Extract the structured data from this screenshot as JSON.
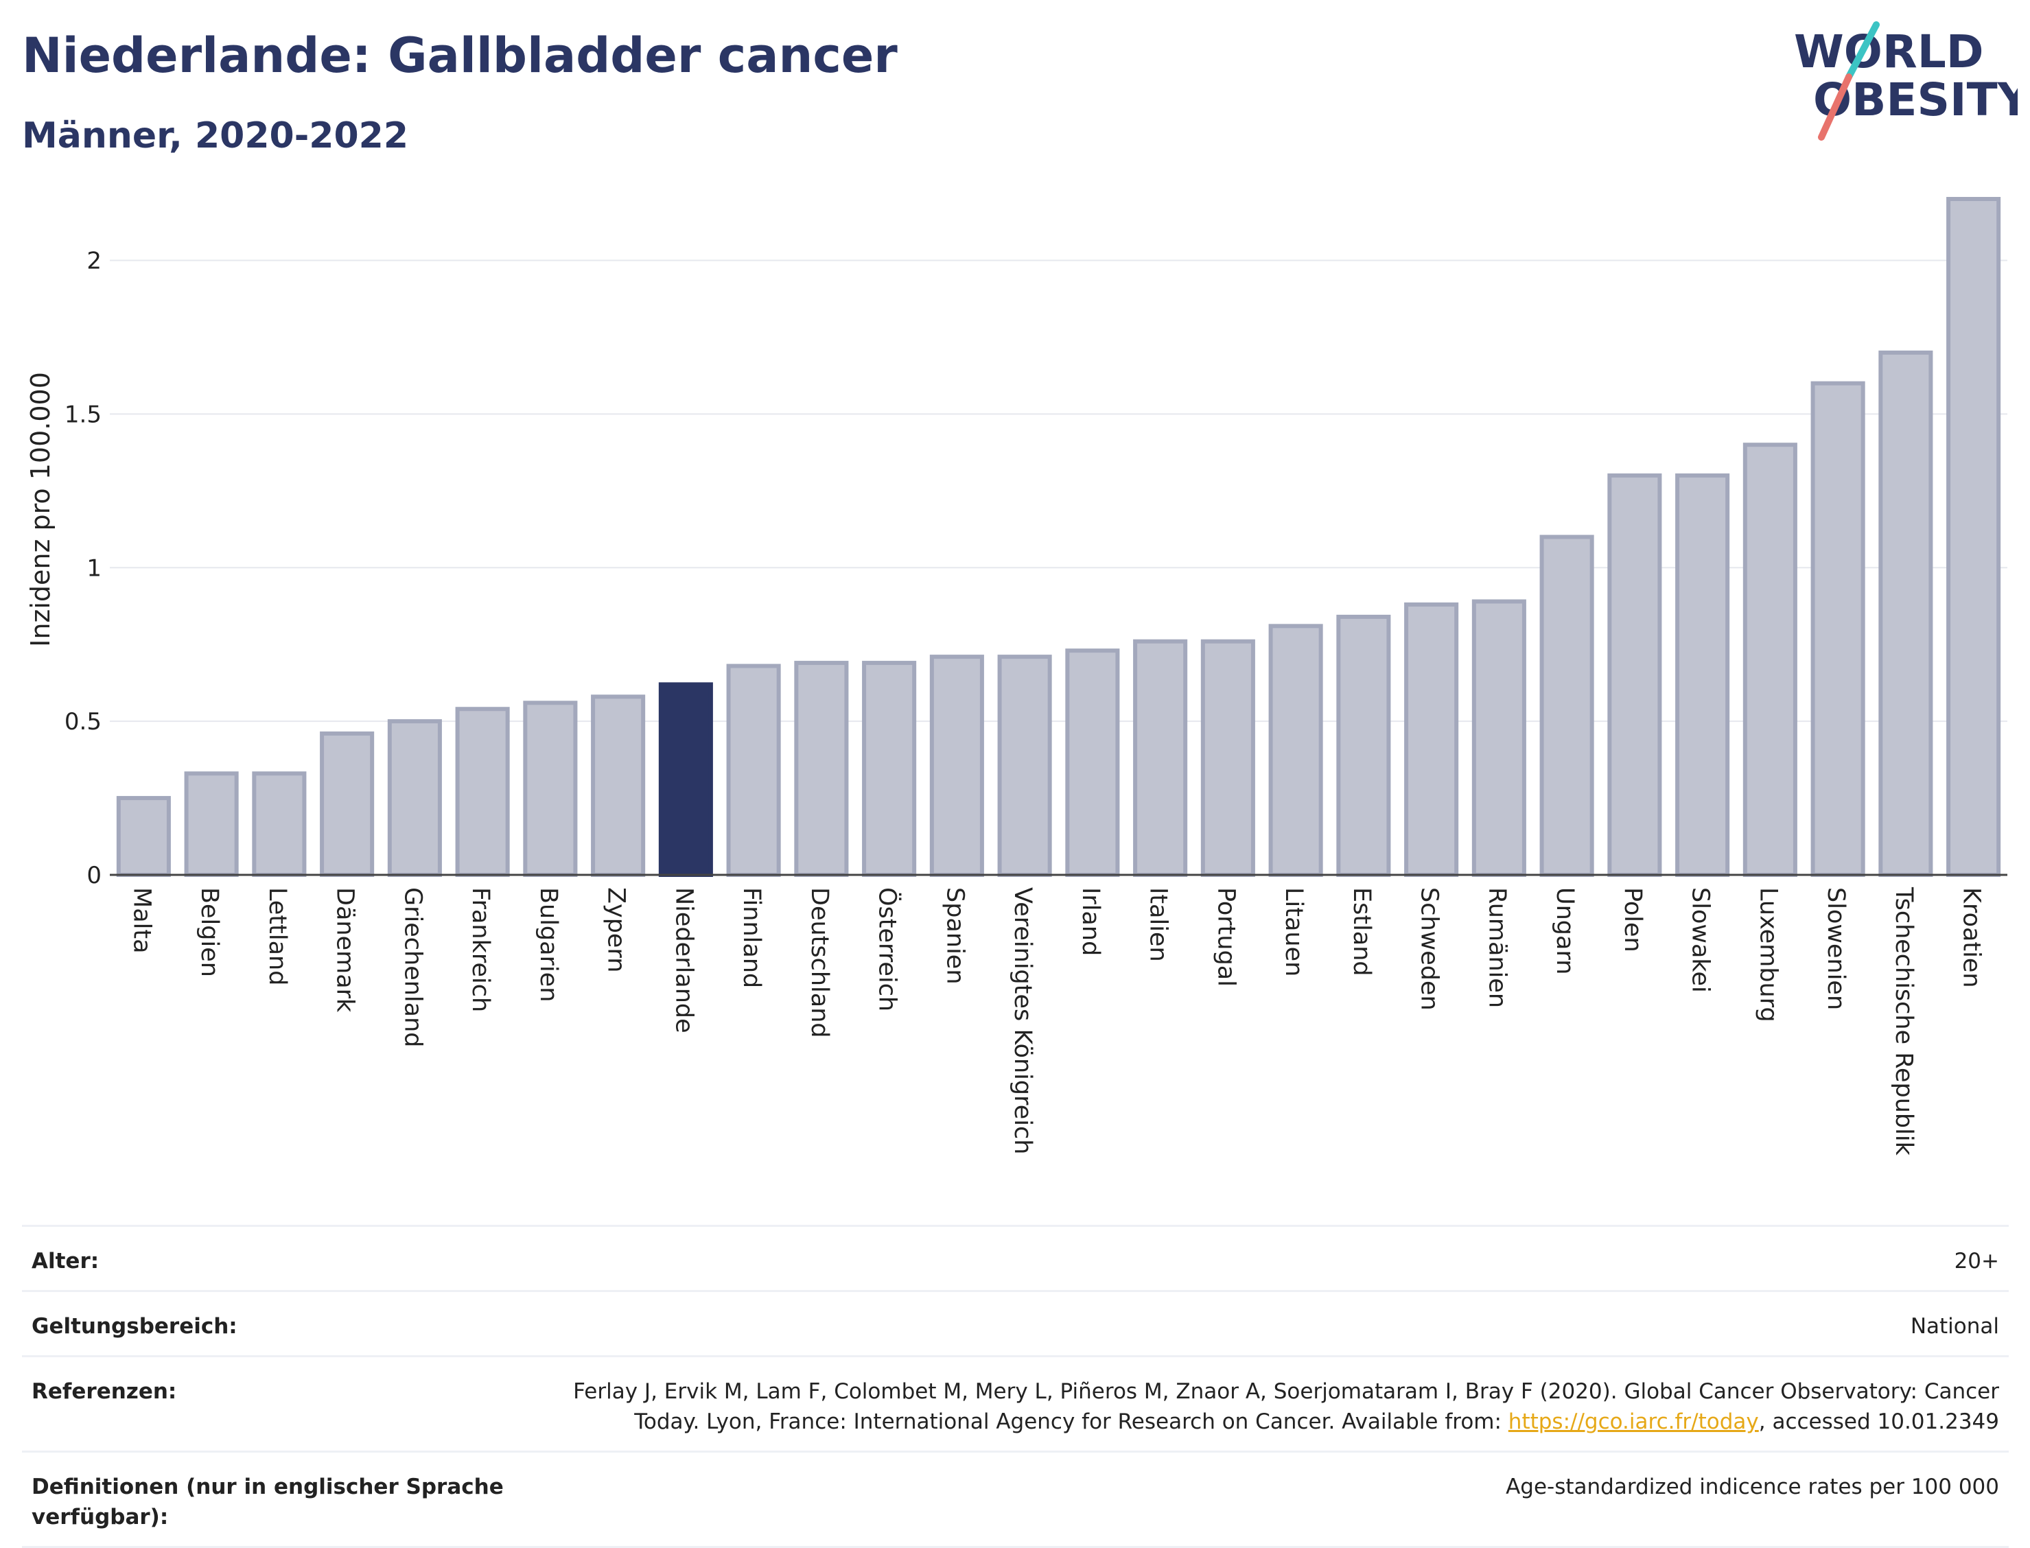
{
  "header": {
    "title": "Niederlande: Gallbladder cancer",
    "subtitle": "Männer, 2020-2022",
    "logo_line1": "WORLD",
    "logo_line2": "OBESITY"
  },
  "colors": {
    "title": "#2b3664",
    "bar_default": "#c0c3d0",
    "bar_default_border": "#a3a8bc",
    "bar_highlight": "#2b3664",
    "logo_text": "#2b3664",
    "logo_slash_top": "#3cc4c4",
    "logo_slash_bottom": "#e8736c",
    "link": "#e6a817"
  },
  "chart_data": {
    "type": "bar",
    "ylabel": "Inzidenz pro 100.000",
    "xlabel": "",
    "ylim": [
      0,
      2.2
    ],
    "yticks": [
      0,
      0.5,
      1,
      1.5,
      2
    ],
    "ytick_labels": [
      "0",
      "0.5",
      "1",
      "1.5",
      "2"
    ],
    "grid": true,
    "highlight": "Niederlande",
    "categories": [
      "Malta",
      "Belgien",
      "Lettland",
      "Dänemark",
      "Griechenland",
      "Frankreich",
      "Bulgarien",
      "Zypern",
      "Niederlande",
      "Finnland",
      "Deutschland",
      "Österreich",
      "Spanien",
      "Vereinigtes Königreich",
      "Irland",
      "Italien",
      "Portugal",
      "Litauen",
      "Estland",
      "Schweden",
      "Rumänien",
      "Ungarn",
      "Polen",
      "Slowakei",
      "Luxemburg",
      "Slowenien",
      "Tschechische Republik",
      "Kroatien"
    ],
    "values": [
      0.25,
      0.33,
      0.33,
      0.46,
      0.5,
      0.54,
      0.56,
      0.58,
      0.62,
      0.68,
      0.69,
      0.69,
      0.71,
      0.71,
      0.73,
      0.76,
      0.76,
      0.81,
      0.84,
      0.88,
      0.89,
      1.1,
      1.3,
      1.3,
      1.4,
      1.6,
      1.7,
      2.2
    ]
  },
  "info": {
    "age_label": "Alter:",
    "age_value": "20+",
    "scope_label": "Geltungsbereich:",
    "scope_value": "National",
    "ref_label": "Referenzen:",
    "ref_text_line1": "Ferlay J, Ervik M, Lam F, Colombet M, Mery L, Piñeros M, Znaor A, Soerjomataram I, Bray F (2020). Global Cancer Observatory: Cancer",
    "ref_text_line2_pre": "Today. Lyon, France: International Agency for Research on Cancer. Available from: ",
    "ref_link": "https://gco.iarc.fr/today",
    "ref_text_line2_post": ", accessed 10.01.2349",
    "def_label": "Definitionen (nur in englischer Sprache verfügbar):",
    "def_value": "Age-standardized indicence rates per 100 000"
  }
}
